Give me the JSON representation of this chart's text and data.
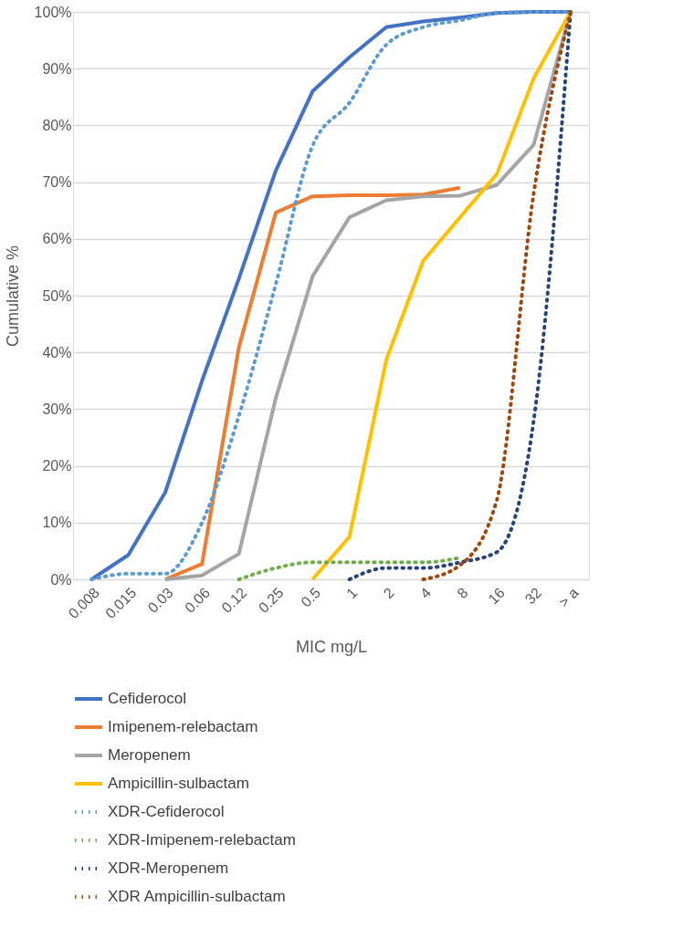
{
  "chart_data": {
    "type": "line",
    "xlabel": "MIC mg/L",
    "ylabel": "Cumulative %",
    "categories": [
      "0.008",
      "0.015",
      "0.03",
      "0.06",
      "0.12",
      "0.25",
      "0.5",
      "1",
      "2",
      "4",
      "8",
      "16",
      "32",
      "> a"
    ],
    "ylim": [
      0,
      100
    ],
    "yticks": [
      {
        "value": 0,
        "label": "0%"
      },
      {
        "value": 10,
        "label": "10%"
      },
      {
        "value": 20,
        "label": "20%"
      },
      {
        "value": 30,
        "label": "30%"
      },
      {
        "value": 40,
        "label": "40%"
      },
      {
        "value": 50,
        "label": "50%"
      },
      {
        "value": 60,
        "label": "60%"
      },
      {
        "value": 70,
        "label": "70%"
      },
      {
        "value": 80,
        "label": "80%"
      },
      {
        "value": 90,
        "label": "90%"
      },
      {
        "value": 100,
        "label": "100%"
      }
    ],
    "grid": "y",
    "legend": "bottom",
    "marker": "none",
    "series": [
      {
        "name": "Cefiderocol",
        "color": "#4472c4",
        "line_style": "solid",
        "values": [
          0,
          4.3,
          15.3,
          35,
          53,
          72,
          86,
          92,
          97.3,
          98.3,
          99,
          99.8,
          100,
          100
        ]
      },
      {
        "name": "Imipenem-relebactam",
        "color": "#ed7d31",
        "line_style": "solid",
        "values": [
          null,
          null,
          0,
          2.7,
          40.9,
          64.6,
          67.5,
          67.7,
          67.7,
          67.8,
          69,
          null,
          null,
          null
        ]
      },
      {
        "name": "Meropenem",
        "color": "#a5a5a5",
        "line_style": "solid",
        "values": [
          null,
          null,
          0,
          0.7,
          4.5,
          31.9,
          53.4,
          63.8,
          66.8,
          67.5,
          67.6,
          69.5,
          76.6,
          100
        ]
      },
      {
        "name": "Ampicillin-sulbactam",
        "color": "#ffc000",
        "line_style": "solid",
        "values": [
          null,
          null,
          null,
          null,
          null,
          null,
          0,
          7.5,
          38.7,
          56.1,
          63.8,
          71.4,
          88.3,
          100
        ]
      },
      {
        "name": "XDR-Cefiderocol",
        "color": "#5b9bd5",
        "line_style": "dotted",
        "values": [
          0,
          1,
          1,
          10,
          28.8,
          52,
          76.4,
          84,
          94.2,
          97.3,
          98.5,
          99.8,
          100,
          100
        ]
      },
      {
        "name": "XDR-Imipenem-relebactam",
        "color": "#70ad47",
        "line_style": "dotted",
        "values": [
          null,
          null,
          null,
          null,
          0,
          2,
          3,
          3,
          3,
          3,
          3.8,
          null,
          null,
          null
        ]
      },
      {
        "name": "XDR-Meropenem",
        "color": "#264478",
        "line_style": "dotted",
        "values": [
          null,
          null,
          null,
          null,
          null,
          null,
          null,
          0,
          2,
          2,
          3,
          4.8,
          28,
          100
        ]
      },
      {
        "name": "XDR Ampicillin-sulbactam",
        "color": "#9e480e",
        "line_style": "dotted",
        "values": [
          null,
          null,
          null,
          null,
          null,
          null,
          null,
          null,
          null,
          0,
          2.5,
          14,
          68,
          100
        ]
      }
    ]
  }
}
